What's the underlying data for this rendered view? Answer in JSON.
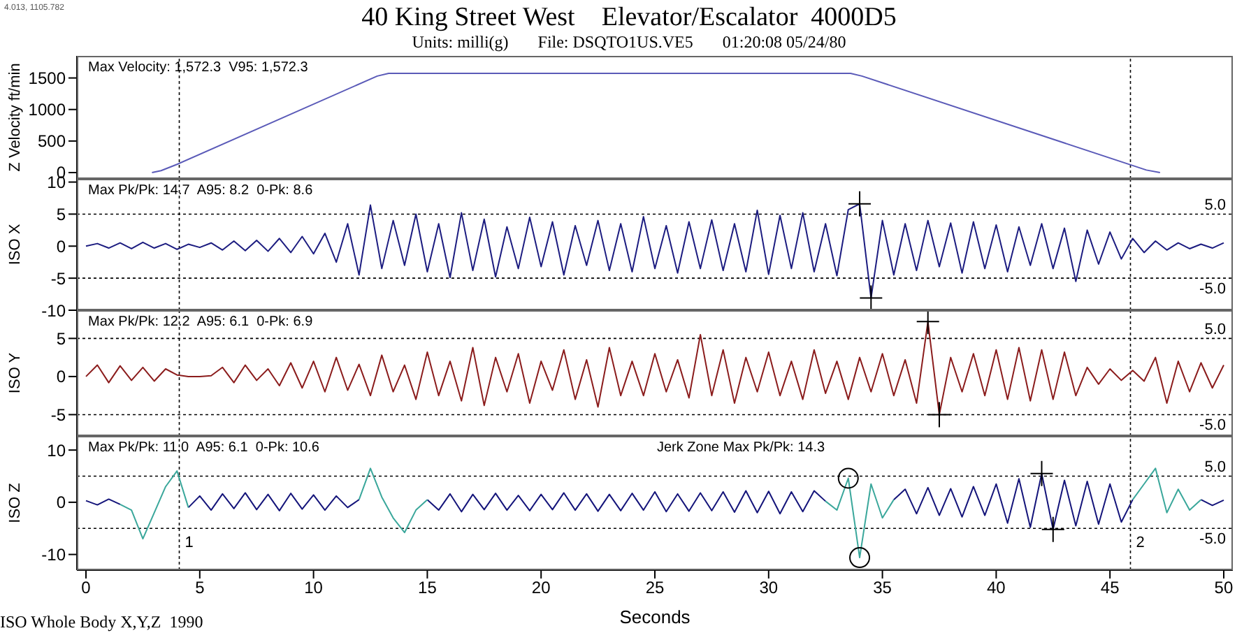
{
  "chart_data": [
    {
      "type": "line",
      "title": "40 King Street West    Elevator/Escalator  4000D5",
      "subtitle": "Units: milli(g)       File: DSQTO1US.VE5       01:20:08 05/24/80",
      "ylabel": "Z Velocity ft/min",
      "annotations": [
        "Max Velocity: 1,572.3  V95: 1,572.3",
        "4.013, 1105.782"
      ],
      "x": [
        2.9,
        3.3,
        4,
        12.8,
        13.3,
        33.6,
        34.1,
        46.6,
        47.2
      ],
      "series": [
        {
          "color": "#5a5ab8",
          "values": [
            0,
            30,
            130,
            1530,
            1572.3,
            1572.3,
            1530,
            40,
            0
          ]
        }
      ],
      "xlim": [
        -0.4,
        50.4
      ],
      "xticks": [
        0,
        5,
        10,
        15,
        20,
        25,
        30,
        35,
        40,
        45,
        50
      ],
      "ylim": [
        -100,
        1850
      ],
      "yticks": [
        0,
        500,
        1000,
        1500
      ],
      "tick_labels": "y",
      "legend": false,
      "marker": "none",
      "line_style": "solid",
      "ref_lines": [
        {
          "axis": "x",
          "value": 4.1,
          "label": null
        },
        {
          "axis": "x",
          "value": 45.9,
          "label": null
        }
      ]
    },
    {
      "type": "line",
      "ylabel": "ISO X",
      "annotations": [
        "Max Pk/Pk: 14.7  A95: 8.2  0-Pk: 8.6"
      ],
      "x": [
        0,
        0.5,
        1,
        1.5,
        2,
        2.5,
        3,
        3.5,
        4,
        4.5,
        5,
        5.5,
        6,
        6.5,
        7,
        7.5,
        8,
        8.5,
        9,
        9.5,
        10,
        10.5,
        11,
        11.5,
        12,
        12.5,
        13,
        13.5,
        14,
        14.5,
        15,
        15.5,
        16,
        16.5,
        17,
        17.5,
        18,
        18.5,
        19,
        19.5,
        20,
        20.5,
        21,
        21.5,
        22,
        22.5,
        23,
        23.5,
        24,
        24.5,
        25,
        25.5,
        26,
        26.5,
        27,
        27.5,
        28,
        28.5,
        29,
        29.5,
        30,
        30.5,
        31,
        31.5,
        32,
        32.5,
        33,
        33.5,
        34,
        34.5,
        35,
        35.5,
        36,
        36.5,
        37,
        37.5,
        38,
        38.5,
        39,
        39.5,
        40,
        40.5,
        41,
        41.5,
        42,
        42.5,
        43,
        43.5,
        44,
        44.5,
        45,
        45.5,
        46,
        46.5,
        47,
        47.5,
        48,
        48.5,
        49,
        49.5,
        50
      ],
      "series": [
        {
          "color": "#1c1c80",
          "values": [
            0,
            0.4,
            -0.3,
            0.5,
            -0.4,
            0.6,
            -0.3,
            0.4,
            -0.5,
            0.3,
            -0.2,
            0.5,
            -0.6,
            0.8,
            -0.7,
            0.9,
            -0.8,
            1.2,
            -1.0,
            1.5,
            -1.2,
            2.0,
            -2.5,
            3.5,
            -4.5,
            6.4,
            -3.5,
            4.0,
            -3.0,
            5.0,
            -4.0,
            3.5,
            -4.9,
            5.2,
            -3.8,
            4.2,
            -4.8,
            3.0,
            -3.5,
            4.5,
            -3.2,
            3.8,
            -4.5,
            3.2,
            -3.0,
            4.0,
            -3.8,
            3.5,
            -4.0,
            4.6,
            -3.5,
            3.2,
            -4.2,
            3.8,
            -3.5,
            4.1,
            -3.8,
            3.5,
            -4.0,
            5.6,
            -4.4,
            4.8,
            -3.5,
            5.2,
            -4.0,
            3.5,
            -4.6,
            5.7,
            6.6,
            -8.1,
            4.0,
            -4.5,
            3.5,
            -3.8,
            4.0,
            -3.2,
            3.6,
            -4.2,
            3.8,
            -3.5,
            3.3,
            -4.0,
            3.0,
            -3.0,
            3.5,
            -3.5,
            2.8,
            -5.5,
            2.5,
            -2.8,
            2.2,
            -2.0,
            1.2,
            -1.0,
            0.8,
            -0.6,
            0.5,
            -0.4,
            0.3,
            -0.3,
            0.5
          ]
        },
        {
          "type": "scatter",
          "marker": "cross",
          "color": "#000000",
          "x": [
            34,
            34.5
          ],
          "values": [
            6.6,
            -8.1
          ]
        }
      ],
      "xlim": [
        -0.4,
        50.4
      ],
      "xticks": [
        0,
        5,
        10,
        15,
        20,
        25,
        30,
        35,
        40,
        45,
        50
      ],
      "ylim": [
        -10,
        10.5
      ],
      "yticks": [
        -10,
        -5,
        0,
        5,
        10
      ],
      "tick_labels": "y",
      "legend": false,
      "marker": "none",
      "line_style": "solid",
      "ref_lines": [
        {
          "axis": "x",
          "value": 4.1,
          "label": null
        },
        {
          "axis": "x",
          "value": 45.9,
          "label": null
        },
        {
          "axis": "y",
          "value": 5,
          "label": "5.0"
        },
        {
          "axis": "y",
          "value": -5,
          "label": "-5.0"
        }
      ]
    },
    {
      "type": "line",
      "ylabel": "ISO Y",
      "annotations": [
        "Max Pk/Pk: 12.2  A95: 6.1  0-Pk: 6.9"
      ],
      "x": [
        0,
        0.5,
        1,
        1.5,
        2,
        2.5,
        3,
        3.5,
        4,
        4.5,
        5,
        5.5,
        6,
        6.5,
        7,
        7.5,
        8,
        8.5,
        9,
        9.5,
        10,
        10.5,
        11,
        11.5,
        12,
        12.5,
        13,
        13.5,
        14,
        14.5,
        15,
        15.5,
        16,
        16.5,
        17,
        17.5,
        18,
        18.5,
        19,
        19.5,
        20,
        20.5,
        21,
        21.5,
        22,
        22.5,
        23,
        23.5,
        24,
        24.5,
        25,
        25.5,
        26,
        26.5,
        27,
        27.5,
        28,
        28.5,
        29,
        29.5,
        30,
        30.5,
        31,
        31.5,
        32,
        32.5,
        33,
        33.5,
        34,
        34.5,
        35,
        35.5,
        36,
        36.5,
        37,
        37.5,
        38,
        38.5,
        39,
        39.5,
        40,
        40.5,
        41,
        41.5,
        42,
        42.5,
        43,
        43.5,
        44,
        44.5,
        45,
        45.5,
        46,
        46.5,
        47,
        47.5,
        48,
        48.5,
        49,
        49.5,
        50
      ],
      "series": [
        {
          "color": "#8b1c1c",
          "values": [
            0,
            1.5,
            -0.8,
            1.4,
            -0.5,
            1.2,
            -0.6,
            1.0,
            0.2,
            0,
            0,
            0.1,
            1.2,
            -0.8,
            1.5,
            -0.5,
            1.0,
            -1.2,
            1.8,
            -1.5,
            2.0,
            -2.0,
            2.5,
            -1.8,
            1.6,
            -2.5,
            2.8,
            -2.0,
            1.5,
            -3.0,
            3.2,
            -2.5,
            2.0,
            -3.2,
            3.8,
            -3.8,
            2.5,
            -2.0,
            3.0,
            -3.5,
            2.0,
            -1.8,
            3.5,
            -3.0,
            2.2,
            -4.0,
            3.8,
            -2.5,
            2.0,
            -2.5,
            3.0,
            -2.0,
            2.2,
            -2.8,
            5.5,
            -2.5,
            3.5,
            -3.5,
            2.5,
            -2.0,
            3.2,
            -2.5,
            2.0,
            -3.0,
            3.5,
            -2.2,
            2.0,
            -3.0,
            2.5,
            -2.0,
            3.0,
            -2.5,
            2.2,
            -3.5,
            7.2,
            -5.0,
            2.5,
            -2.0,
            3.0,
            -2.5,
            3.5,
            -3.0,
            3.8,
            -3.2,
            3.5,
            -3.0,
            3.2,
            -2.5,
            1.2,
            -1.0,
            1.0,
            -0.5,
            0.8,
            -0.6,
            2.5,
            -3.5,
            2.0,
            -2.0,
            1.8,
            -1.5,
            1.5
          ]
        },
        {
          "type": "scatter",
          "marker": "cross",
          "color": "#000000",
          "x": [
            37,
            37.5
          ],
          "values": [
            7.2,
            -5.0
          ]
        }
      ],
      "xlim": [
        -0.4,
        50.4
      ],
      "xticks": [
        0,
        5,
        10,
        15,
        20,
        25,
        30,
        35,
        40,
        45,
        50
      ],
      "ylim": [
        -7.8,
        8.7
      ],
      "yticks": [
        -5,
        0,
        5
      ],
      "tick_labels": "y",
      "legend": false,
      "marker": "none",
      "line_style": "solid",
      "ref_lines": [
        {
          "axis": "x",
          "value": 4.1,
          "label": null
        },
        {
          "axis": "x",
          "value": 45.9,
          "label": null
        },
        {
          "axis": "y",
          "value": 5,
          "label": "5.0"
        },
        {
          "axis": "y",
          "value": -5,
          "label": "-5.0"
        }
      ]
    },
    {
      "type": "line",
      "ylabel": "ISO Z",
      "xlabel": "Seconds",
      "annotations": [
        "Max Pk/Pk: 11.0  A95: 6.1  0-Pk: 10.6",
        "Jerk Zone Max Pk/Pk: 14.3",
        "ISO Whole Body X,Y,Z  1990",
        {
          "text": "1",
          "x": 4.1,
          "y": -7.5
        },
        {
          "text": "2",
          "x": 45.9,
          "y": -7.5
        }
      ],
      "x": [
        0,
        0.5,
        1,
        1.5,
        2,
        2.5,
        3,
        3.5,
        4,
        4.5,
        5,
        5.5,
        6,
        6.5,
        7,
        7.5,
        8,
        8.5,
        9,
        9.5,
        10,
        10.5,
        11,
        11.5,
        12,
        12.5,
        13,
        13.5,
        14,
        14.5,
        15,
        15.5,
        16,
        16.5,
        17,
        17.5,
        18,
        18.5,
        19,
        19.5,
        20,
        20.5,
        21,
        21.5,
        22,
        22.5,
        23,
        23.5,
        24,
        24.5,
        25,
        25.5,
        26,
        26.5,
        27,
        27.5,
        28,
        28.5,
        29,
        29.5,
        30,
        30.5,
        31,
        31.5,
        32,
        32.5,
        33,
        33.5,
        34,
        34.5,
        35,
        35.5,
        36,
        36.5,
        37,
        37.5,
        38,
        38.5,
        39,
        39.5,
        40,
        40.5,
        41,
        41.5,
        42,
        42.5,
        43,
        43.5,
        44,
        44.5,
        45,
        45.5,
        46,
        46.5,
        47,
        47.5,
        48,
        48.5,
        49,
        49.5,
        50
      ],
      "series": [
        {
          "color": "#14147a",
          "values": [
            0.3,
            -0.5,
            0.6,
            -0.4,
            null,
            null,
            null,
            null,
            null,
            -1.0,
            1.2,
            -1.5,
            1.6,
            -1.2,
            1.8,
            -1.4,
            1.5,
            -1.6,
            1.7,
            -1.3,
            1.4,
            -1.5,
            1.2,
            -1.0,
            0.5,
            null,
            null,
            null,
            null,
            null,
            0.5,
            -1.5,
            1.6,
            -1.8,
            1.5,
            -1.4,
            1.7,
            -1.5,
            1.3,
            -1.6,
            1.5,
            -1.4,
            1.8,
            -1.5,
            1.6,
            -1.7,
            1.5,
            -1.6,
            1.7,
            -1.5,
            2.0,
            -1.8,
            1.6,
            -1.7,
            1.8,
            -1.6,
            2.0,
            -1.9,
            2.2,
            -2.0,
            2.1,
            -2.2,
            2.0,
            -1.8,
            2.2,
            0.2,
            null,
            null,
            null,
            null,
            null,
            0.5,
            2.5,
            -2.2,
            2.8,
            -2.5,
            2.6,
            -2.8,
            3.0,
            -2.5,
            3.5,
            -4.0,
            4.5,
            -4.8,
            5.5,
            -5.2,
            4.2,
            -4.5,
            4.0,
            -4.2,
            3.5,
            -3.8,
            0.5,
            null,
            null,
            null,
            null,
            null,
            0.5,
            -0.6,
            0.4
          ]
        },
        {
          "color": "#3aa79b",
          "values": [
            null,
            null,
            null,
            -0.4,
            -1.5,
            -7.0,
            -2.0,
            3.0,
            6.0,
            -1.0,
            null,
            null,
            null,
            null,
            null,
            null,
            null,
            null,
            null,
            null,
            null,
            null,
            null,
            null,
            0.5,
            6.5,
            1.0,
            -3.0,
            -5.8,
            -1.5,
            0.5,
            null,
            null,
            null,
            null,
            null,
            null,
            null,
            null,
            null,
            null,
            null,
            null,
            null,
            null,
            null,
            null,
            null,
            null,
            null,
            null,
            null,
            null,
            null,
            null,
            null,
            null,
            null,
            null,
            null,
            null,
            null,
            null,
            null,
            null,
            0.2,
            -1.5,
            4.6,
            -10.6,
            3.5,
            -3.0,
            0.5,
            null,
            null,
            null,
            null,
            null,
            null,
            null,
            null,
            null,
            null,
            null,
            null,
            null,
            null,
            null,
            null,
            null,
            null,
            null,
            null,
            0.5,
            3.5,
            6.5,
            -2.0,
            2.5,
            -1.5,
            0.5,
            null,
            null
          ]
        },
        {
          "type": "scatter",
          "marker": "cross",
          "color": "#000000",
          "x": [
            42,
            42.5
          ],
          "values": [
            5.5,
            -5.2
          ]
        },
        {
          "type": "scatter",
          "marker": "circle",
          "color": "#000000",
          "x": [
            33.5,
            34
          ],
          "values": [
            4.6,
            -10.6
          ]
        }
      ],
      "xlim": [
        -0.4,
        50.4
      ],
      "xticks": [
        0,
        5,
        10,
        15,
        20,
        25,
        30,
        35,
        40,
        45,
        50
      ],
      "ylim": [
        -13,
        12.7
      ],
      "yticks": [
        -10,
        0,
        10
      ],
      "legend": false,
      "marker": "none",
      "line_style": "solid",
      "ref_lines": [
        {
          "axis": "x",
          "value": 4.1,
          "label": null
        },
        {
          "axis": "x",
          "value": 45.9,
          "label": null
        },
        {
          "axis": "y",
          "value": 5,
          "label": "5.0"
        },
        {
          "axis": "y",
          "value": -5,
          "label": "-5.0"
        }
      ]
    }
  ]
}
